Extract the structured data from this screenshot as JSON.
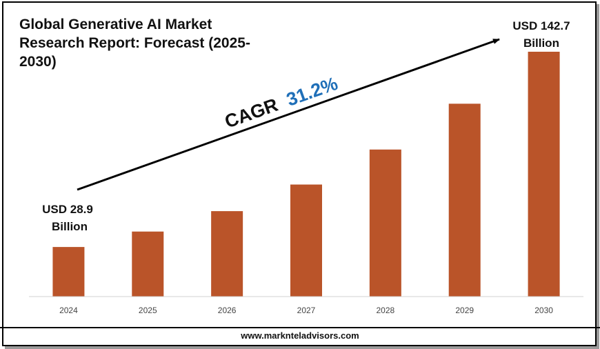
{
  "chart_data": {
    "type": "bar",
    "title": "Global Generative AI Market Research Report: Forecast (2025-2030)",
    "categories": [
      "2024",
      "2025",
      "2026",
      "2027",
      "2028",
      "2029",
      "2030"
    ],
    "values": [
      28.9,
      37.9,
      49.8,
      65.3,
      85.7,
      112.4,
      142.7
    ],
    "unit": "USD Billion",
    "ylim": [
      0,
      150
    ],
    "xlabel": "",
    "ylabel": "",
    "grid": false,
    "annotations": {
      "start_label_line1": "USD 28.9",
      "start_label_line2": "Billion",
      "end_label_line1": "USD 142.7",
      "end_label_line2": "Billion",
      "cagr_prefix": "CAGR",
      "cagr_value": "31.2%"
    }
  },
  "footer": {
    "website": "www.marknteladvisors.com"
  },
  "colors": {
    "bar": "#BA5429",
    "cagr_value": "#1F6FB8",
    "axis": "#d0d0d0",
    "text": "#111111",
    "tick": "#444444"
  }
}
